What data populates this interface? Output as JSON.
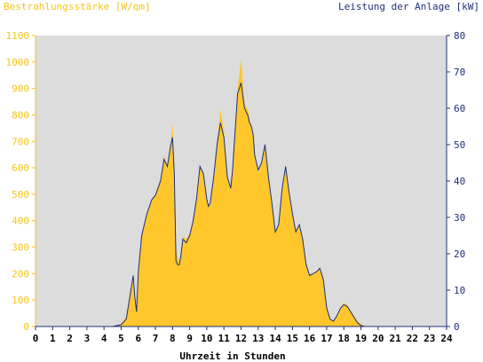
{
  "chart_data": {
    "type": "area",
    "y_left_label": "Bestrahlungsstärke [W/qm]",
    "y_right_label": "Leistung der Anlage [kW]",
    "xlabel": "Uhrzeit in Stunden",
    "xlim": [
      0,
      24
    ],
    "ylim_left": [
      0,
      1100
    ],
    "ylim_right": [
      0,
      80
    ],
    "x_ticks": [
      "0",
      "1",
      "2",
      "3",
      "4",
      "5",
      "6",
      "7",
      "8",
      "9",
      "10",
      "11",
      "12",
      "13",
      "14",
      "15",
      "16",
      "17",
      "18",
      "19",
      "20",
      "21",
      "22",
      "23",
      "24"
    ],
    "y_left_ticks": [
      "0",
      "100",
      "200",
      "300",
      "400",
      "500",
      "600",
      "700",
      "800",
      "900",
      "1000",
      "1100"
    ],
    "y_right_ticks": [
      "0",
      "10",
      "20",
      "30",
      "40",
      "50",
      "60",
      "70",
      "80"
    ],
    "colors": {
      "irradiance_fill": "#ffc72c",
      "power_line": "#1f2f7a",
      "plot_background": "#dcdcdc",
      "left_axis_text": "#f5c518",
      "right_axis_text": "#1f2f7a"
    },
    "series": [
      {
        "name": "Bestrahlungsstärke [W/qm]",
        "axis": "left",
        "style": "area",
        "x": [
          0,
          4.5,
          5.0,
          5.3,
          5.5,
          5.7,
          5.8,
          5.9,
          6.0,
          6.2,
          6.5,
          6.8,
          7.0,
          7.3,
          7.5,
          7.7,
          7.9,
          8.0,
          8.1,
          8.2,
          8.3,
          8.4,
          8.5,
          8.6,
          8.8,
          9.0,
          9.2,
          9.4,
          9.6,
          9.8,
          10.0,
          10.1,
          10.2,
          10.4,
          10.6,
          10.8,
          11.0,
          11.2,
          11.4,
          11.5,
          11.6,
          11.8,
          12.0,
          12.2,
          12.4,
          12.5,
          12.6,
          12.7,
          12.8,
          13.0,
          13.2,
          13.4,
          13.6,
          13.8,
          14.0,
          14.2,
          14.4,
          14.6,
          14.8,
          15.0,
          15.2,
          15.4,
          15.6,
          15.8,
          16.0,
          16.2,
          16.4,
          16.6,
          16.8,
          17.0,
          17.2,
          17.4,
          17.6,
          17.8,
          18.0,
          18.2,
          18.4,
          18.6,
          18.8,
          19.0,
          19.2,
          19.4,
          19.6,
          19.8,
          20.0,
          20.2,
          24
        ],
        "values": [
          0,
          0,
          10,
          40,
          120,
          170,
          100,
          60,
          220,
          350,
          420,
          480,
          500,
          560,
          640,
          610,
          700,
          770,
          600,
          300,
          260,
          250,
          280,
          340,
          330,
          350,
          400,
          480,
          600,
          580,
          480,
          450,
          460,
          560,
          700,
          820,
          740,
          560,
          520,
          600,
          700,
          900,
          1010,
          840,
          820,
          780,
          760,
          720,
          640,
          580,
          620,
          690,
          560,
          460,
          360,
          380,
          520,
          600,
          500,
          420,
          360,
          380,
          330,
          240,
          190,
          200,
          210,
          220,
          180,
          80,
          30,
          20,
          40,
          70,
          90,
          80,
          60,
          40,
          20,
          8,
          2,
          0,
          0,
          0,
          0,
          0,
          0
        ]
      },
      {
        "name": "Leistung der Anlage [kW]",
        "axis": "right",
        "style": "line",
        "x": [
          0,
          4.5,
          5.0,
          5.3,
          5.5,
          5.7,
          5.8,
          5.9,
          6.0,
          6.2,
          6.5,
          6.8,
          7.0,
          7.3,
          7.5,
          7.7,
          7.9,
          8.0,
          8.1,
          8.2,
          8.3,
          8.4,
          8.5,
          8.6,
          8.8,
          9.0,
          9.2,
          9.4,
          9.6,
          9.8,
          10.0,
          10.1,
          10.2,
          10.4,
          10.6,
          10.8,
          11.0,
          11.2,
          11.4,
          11.5,
          11.6,
          11.8,
          12.0,
          12.2,
          12.4,
          12.5,
          12.6,
          12.7,
          12.8,
          13.0,
          13.2,
          13.4,
          13.6,
          13.8,
          14.0,
          14.2,
          14.4,
          14.6,
          14.8,
          15.0,
          15.2,
          15.4,
          15.6,
          15.8,
          16.0,
          16.2,
          16.4,
          16.6,
          16.8,
          17.0,
          17.2,
          17.4,
          17.6,
          17.8,
          18.0,
          18.2,
          18.4,
          18.6,
          18.8,
          19.0,
          19.2,
          19.4,
          19.6,
          19.8,
          20.0,
          20.2,
          24
        ],
        "values": [
          0,
          0,
          0.5,
          2,
          8,
          14,
          8,
          4,
          15,
          25,
          31,
          35,
          36,
          40,
          46,
          44,
          50,
          52,
          42,
          18,
          17,
          17,
          20,
          24,
          23,
          25,
          29,
          35,
          44,
          42,
          35,
          33,
          34,
          41,
          50,
          56,
          52,
          41,
          38,
          43,
          50,
          64,
          67,
          60,
          58,
          56,
          55,
          53,
          47,
          43,
          45,
          50,
          41,
          34,
          26,
          28,
          38,
          44,
          37,
          31,
          26,
          28,
          24,
          17,
          14,
          14.5,
          15,
          16,
          13,
          5,
          2,
          1.5,
          3,
          5,
          6,
          5.5,
          4,
          2.5,
          1,
          0.3,
          0,
          0,
          0,
          0,
          0,
          0,
          0
        ]
      }
    ]
  }
}
